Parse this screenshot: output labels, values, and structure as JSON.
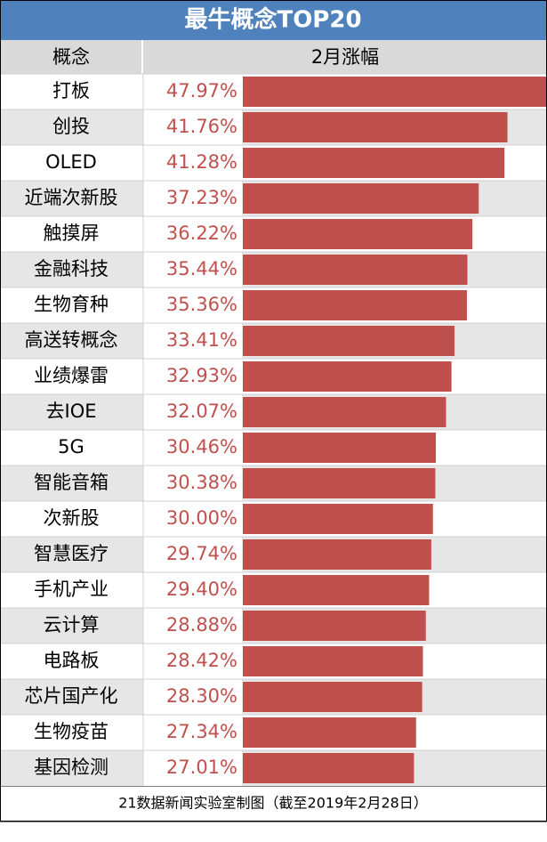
{
  "chart_data": {
    "type": "bar",
    "title": "最牛概念TOP20",
    "column_headers": [
      "概念",
      "2月涨幅"
    ],
    "categories": [
      "打板",
      "创投",
      "OLED",
      "近端次新股",
      "触摸屏",
      "金融科技",
      "生物育种",
      "高送转概念",
      "业绩爆雷",
      "去IOE",
      "5G",
      "智能音箱",
      "次新股",
      "智慧医疗",
      "手机产业",
      "云计算",
      "电路板",
      "芯片国产化",
      "生物疫苗",
      "基因检测"
    ],
    "values": [
      47.97,
      41.76,
      41.28,
      37.23,
      36.22,
      35.44,
      35.36,
      33.41,
      32.93,
      32.07,
      30.46,
      30.38,
      30.0,
      29.74,
      29.4,
      28.88,
      28.42,
      28.3,
      27.34,
      27.01
    ],
    "value_labels": [
      "47.97%",
      "41.76%",
      "41.28%",
      "37.23%",
      "36.22%",
      "35.44%",
      "35.36%",
      "33.41%",
      "32.93%",
      "32.07%",
      "30.46%",
      "30.38%",
      "30.00%",
      "29.74%",
      "29.40%",
      "28.88%",
      "28.42%",
      "28.30%",
      "27.34%",
      "27.01%"
    ],
    "color": "#c0504d",
    "xlim": [
      0,
      48
    ],
    "source": "21数据新闻实验室制图（截至2019年2月28日）"
  }
}
